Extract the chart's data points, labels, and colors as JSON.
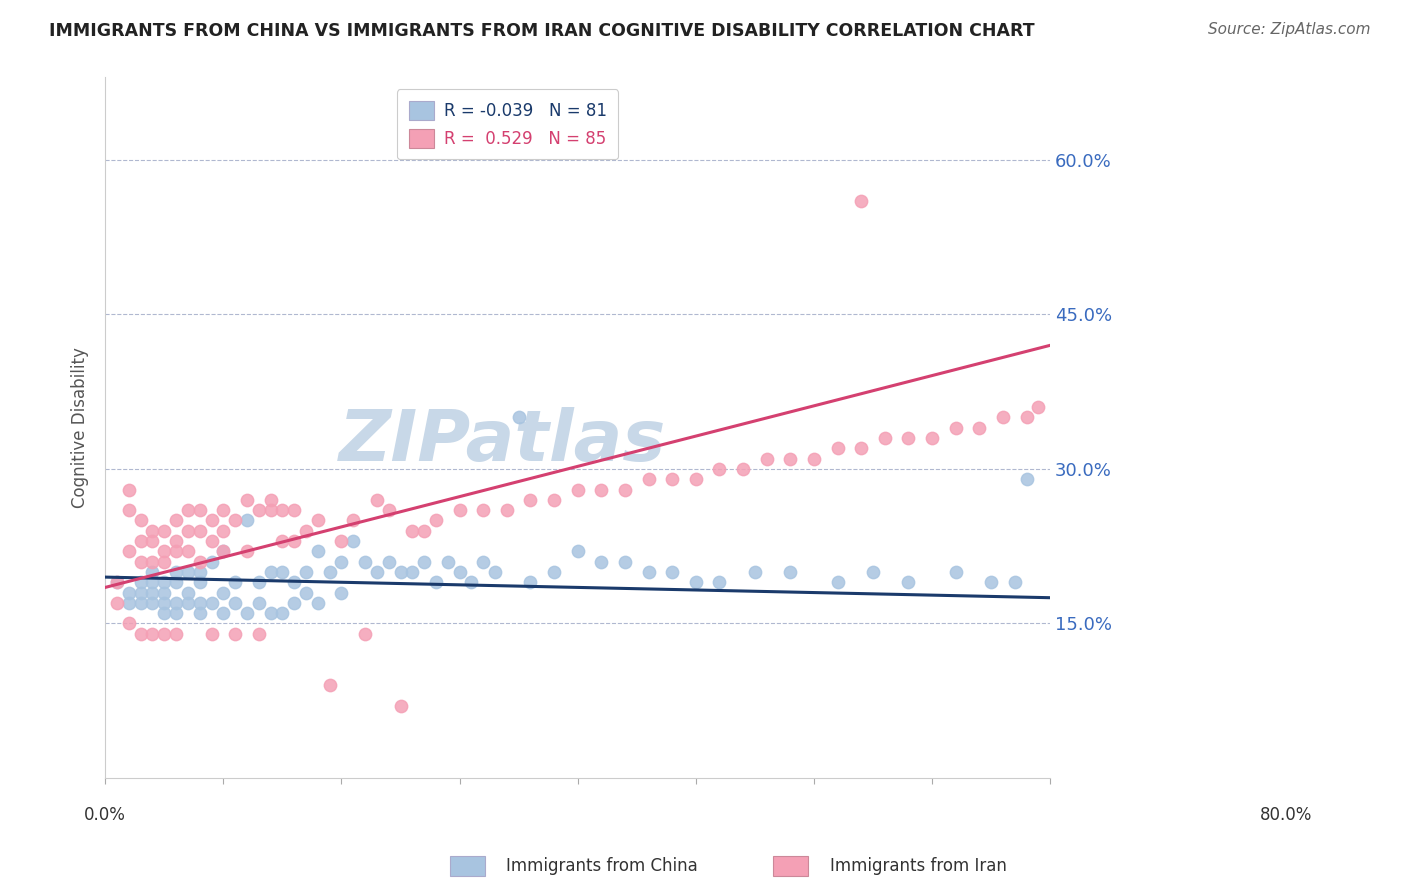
{
  "title": "IMMIGRANTS FROM CHINA VS IMMIGRANTS FROM IRAN COGNITIVE DISABILITY CORRELATION CHART",
  "source": "Source: ZipAtlas.com",
  "ylabel": "Cognitive Disability",
  "yticks": [
    "15.0%",
    "30.0%",
    "45.0%",
    "60.0%"
  ],
  "ytick_vals": [
    0.15,
    0.3,
    0.45,
    0.6
  ],
  "xrange": [
    0.0,
    0.8
  ],
  "yrange": [
    0.0,
    0.68
  ],
  "china_color": "#a8c4e0",
  "iran_color": "#f4a0b5",
  "china_line_color": "#1a3a6b",
  "iran_line_color": "#d44070",
  "R_china": -0.039,
  "N_china": 81,
  "R_iran": 0.529,
  "N_iran": 85,
  "china_scatter_x": [
    0.01,
    0.02,
    0.02,
    0.03,
    0.03,
    0.03,
    0.04,
    0.04,
    0.04,
    0.04,
    0.05,
    0.05,
    0.05,
    0.05,
    0.06,
    0.06,
    0.06,
    0.06,
    0.07,
    0.07,
    0.07,
    0.08,
    0.08,
    0.08,
    0.08,
    0.09,
    0.09,
    0.1,
    0.1,
    0.1,
    0.11,
    0.11,
    0.12,
    0.12,
    0.13,
    0.13,
    0.14,
    0.14,
    0.15,
    0.15,
    0.16,
    0.16,
    0.17,
    0.17,
    0.18,
    0.18,
    0.19,
    0.2,
    0.2,
    0.21,
    0.22,
    0.23,
    0.24,
    0.25,
    0.26,
    0.27,
    0.28,
    0.29,
    0.3,
    0.31,
    0.32,
    0.33,
    0.35,
    0.36,
    0.38,
    0.4,
    0.42,
    0.44,
    0.46,
    0.48,
    0.5,
    0.52,
    0.55,
    0.58,
    0.62,
    0.65,
    0.68,
    0.72,
    0.75,
    0.77,
    0.78
  ],
  "china_scatter_y": [
    0.19,
    0.18,
    0.17,
    0.19,
    0.18,
    0.17,
    0.2,
    0.19,
    0.18,
    0.17,
    0.19,
    0.18,
    0.17,
    0.16,
    0.2,
    0.19,
    0.17,
    0.16,
    0.2,
    0.18,
    0.17,
    0.2,
    0.19,
    0.17,
    0.16,
    0.21,
    0.17,
    0.22,
    0.18,
    0.16,
    0.19,
    0.17,
    0.25,
    0.16,
    0.19,
    0.17,
    0.2,
    0.16,
    0.2,
    0.16,
    0.19,
    0.17,
    0.2,
    0.18,
    0.22,
    0.17,
    0.2,
    0.21,
    0.18,
    0.23,
    0.21,
    0.2,
    0.21,
    0.2,
    0.2,
    0.21,
    0.19,
    0.21,
    0.2,
    0.19,
    0.21,
    0.2,
    0.35,
    0.19,
    0.2,
    0.22,
    0.21,
    0.21,
    0.2,
    0.2,
    0.19,
    0.19,
    0.2,
    0.2,
    0.19,
    0.2,
    0.19,
    0.2,
    0.19,
    0.19,
    0.29
  ],
  "iran_scatter_x": [
    0.01,
    0.01,
    0.02,
    0.02,
    0.02,
    0.02,
    0.03,
    0.03,
    0.03,
    0.03,
    0.04,
    0.04,
    0.04,
    0.04,
    0.05,
    0.05,
    0.05,
    0.05,
    0.06,
    0.06,
    0.06,
    0.06,
    0.07,
    0.07,
    0.07,
    0.08,
    0.08,
    0.08,
    0.09,
    0.09,
    0.09,
    0.1,
    0.1,
    0.1,
    0.11,
    0.11,
    0.12,
    0.12,
    0.13,
    0.13,
    0.14,
    0.14,
    0.15,
    0.15,
    0.16,
    0.16,
    0.17,
    0.18,
    0.19,
    0.2,
    0.21,
    0.22,
    0.23,
    0.24,
    0.25,
    0.26,
    0.27,
    0.28,
    0.3,
    0.32,
    0.34,
    0.36,
    0.38,
    0.4,
    0.42,
    0.44,
    0.46,
    0.48,
    0.5,
    0.52,
    0.54,
    0.56,
    0.58,
    0.6,
    0.62,
    0.64,
    0.66,
    0.68,
    0.7,
    0.72,
    0.74,
    0.76,
    0.78,
    0.79,
    0.64
  ],
  "iran_scatter_y": [
    0.19,
    0.17,
    0.28,
    0.26,
    0.22,
    0.15,
    0.25,
    0.23,
    0.21,
    0.14,
    0.24,
    0.23,
    0.21,
    0.14,
    0.24,
    0.22,
    0.21,
    0.14,
    0.25,
    0.23,
    0.22,
    0.14,
    0.26,
    0.24,
    0.22,
    0.26,
    0.24,
    0.21,
    0.25,
    0.23,
    0.14,
    0.26,
    0.24,
    0.22,
    0.25,
    0.14,
    0.27,
    0.22,
    0.26,
    0.14,
    0.27,
    0.26,
    0.26,
    0.23,
    0.26,
    0.23,
    0.24,
    0.25,
    0.09,
    0.23,
    0.25,
    0.14,
    0.27,
    0.26,
    0.07,
    0.24,
    0.24,
    0.25,
    0.26,
    0.26,
    0.26,
    0.27,
    0.27,
    0.28,
    0.28,
    0.28,
    0.29,
    0.29,
    0.29,
    0.3,
    0.3,
    0.31,
    0.31,
    0.31,
    0.32,
    0.32,
    0.33,
    0.33,
    0.33,
    0.34,
    0.34,
    0.35,
    0.35,
    0.36,
    0.56
  ],
  "watermark": "ZIPatlas",
  "watermark_color": "#c8d8e8"
}
